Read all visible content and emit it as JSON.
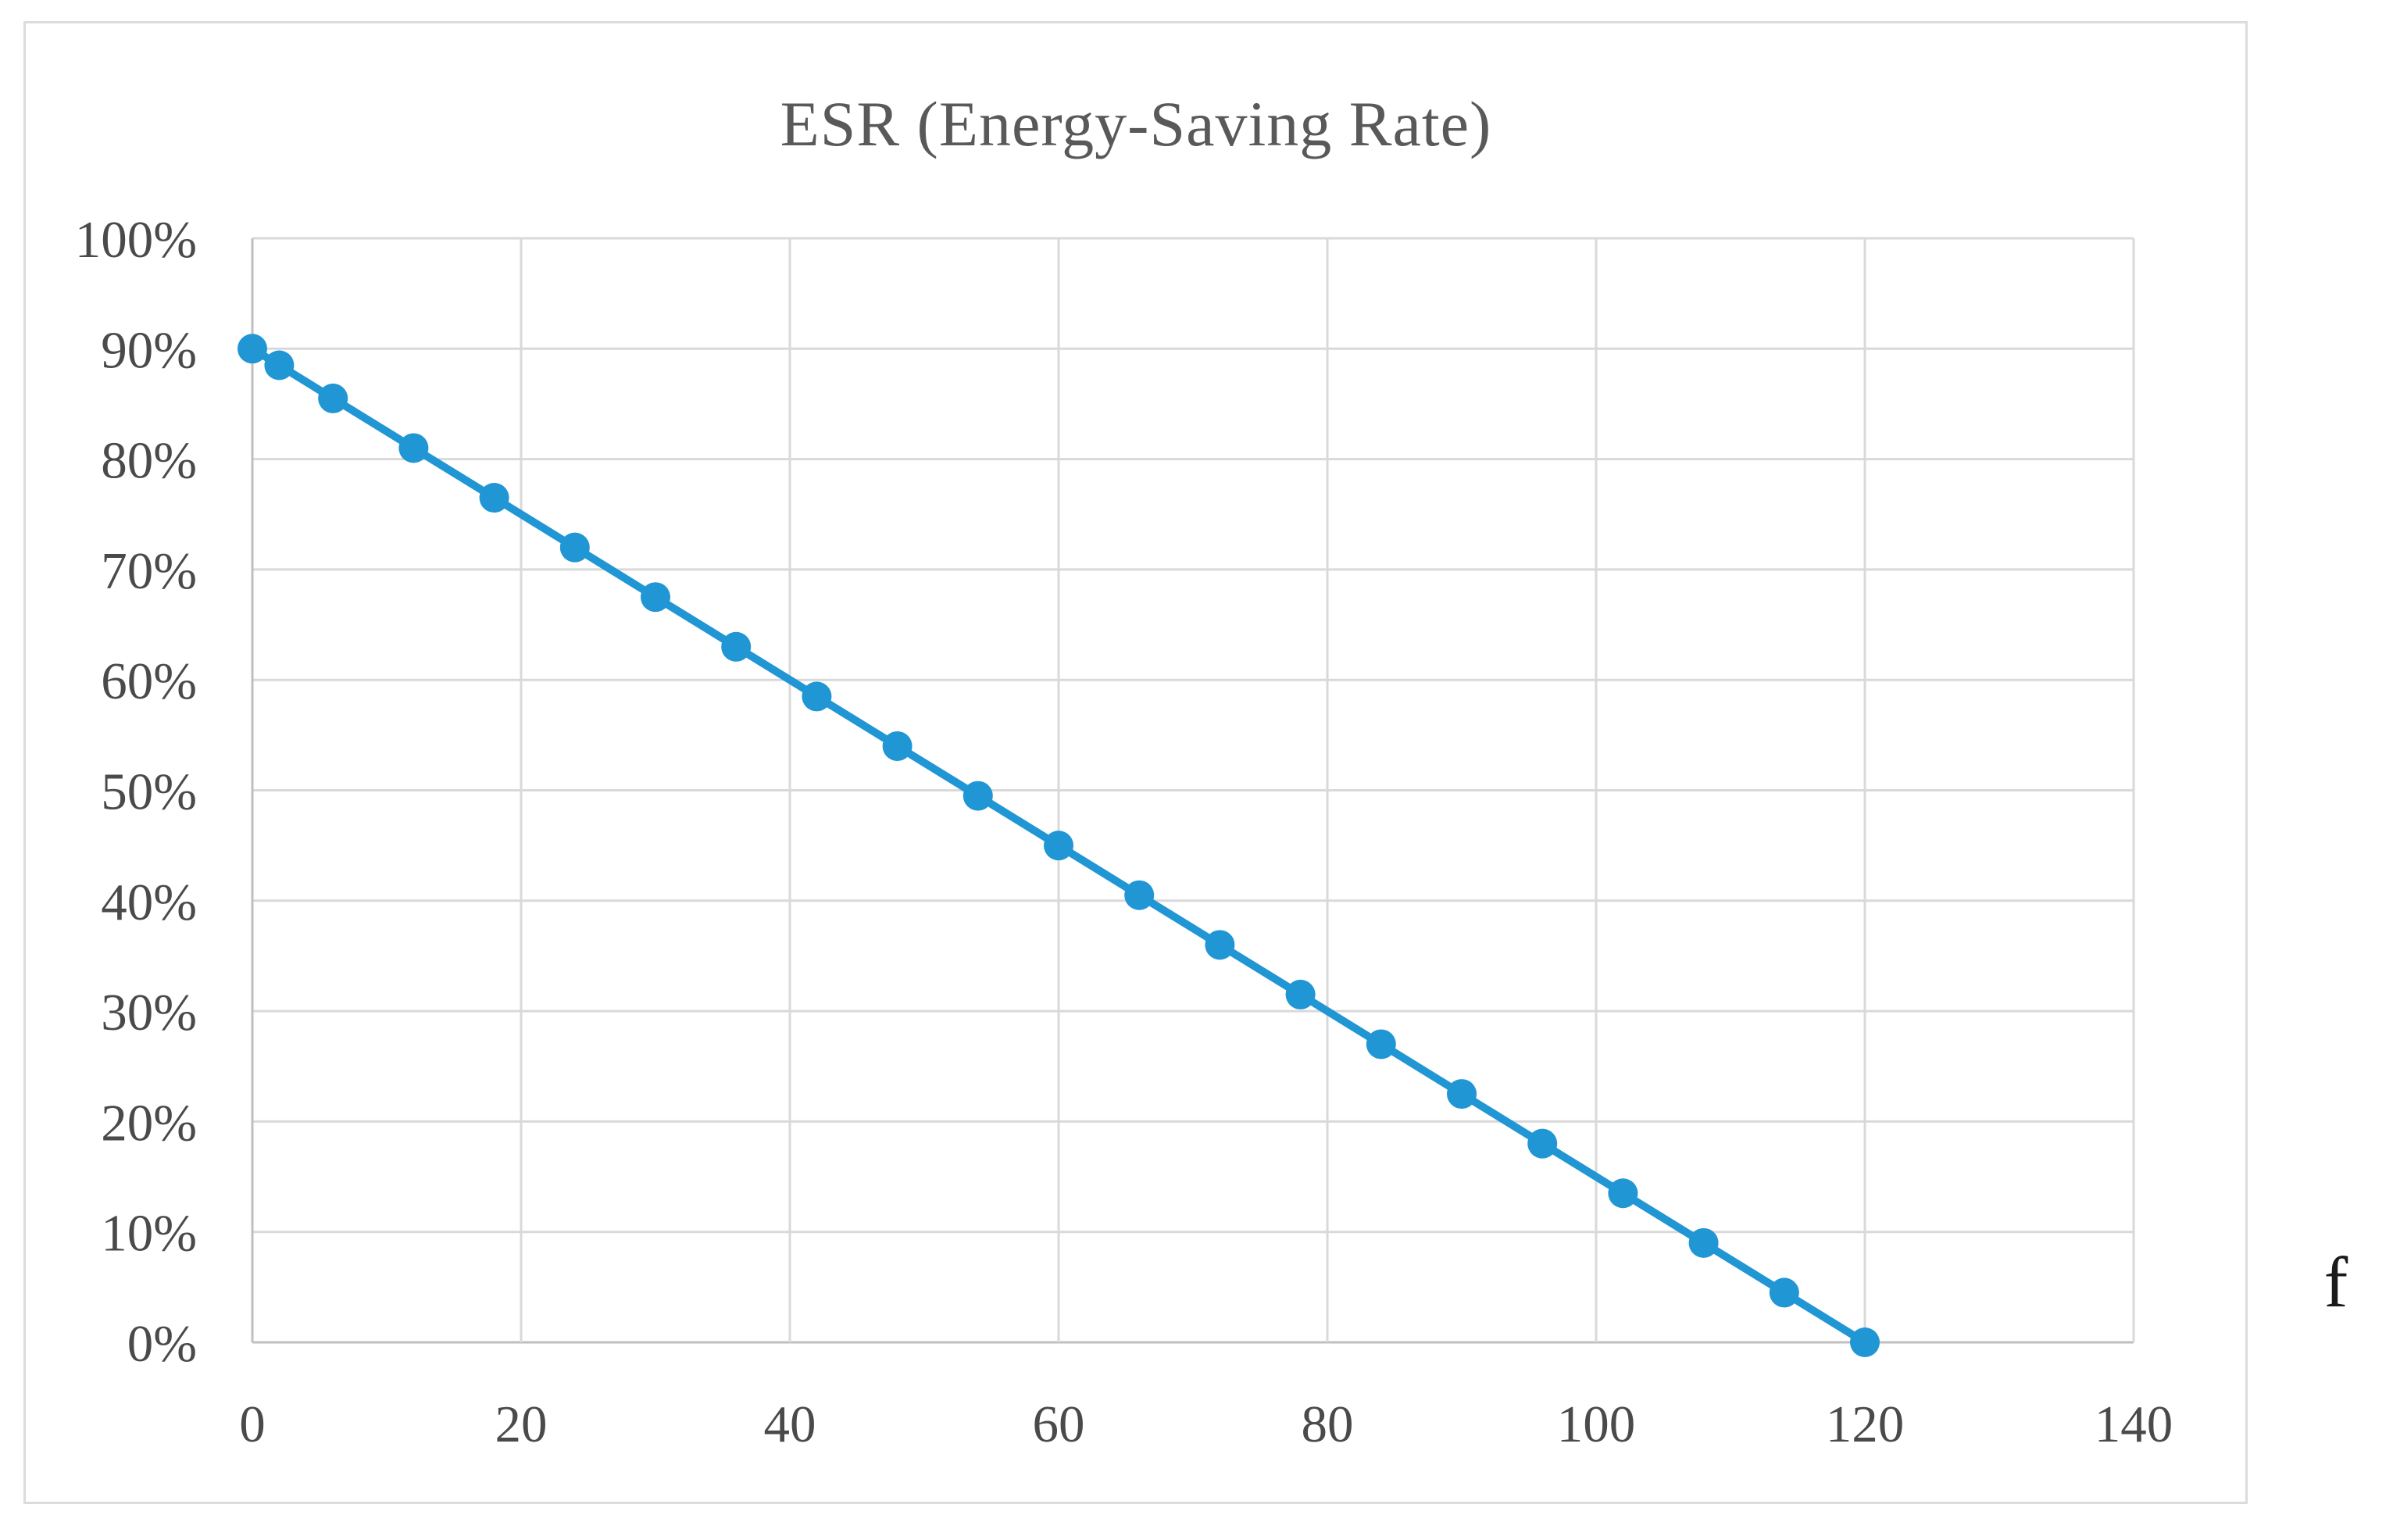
{
  "chart_data": {
    "type": "line",
    "title": "ESR (Energy-Saving Rate)",
    "x_variable": "f",
    "x": [
      0,
      2,
      6,
      12,
      18,
      24,
      30,
      36,
      42,
      48,
      54,
      60,
      66,
      72,
      78,
      84,
      90,
      96,
      102,
      108,
      114,
      120
    ],
    "y_percent": [
      90,
      88.5,
      85.5,
      81,
      76.5,
      72,
      67.5,
      63,
      58.5,
      54,
      49.5,
      45,
      40.5,
      36,
      31.5,
      27,
      22.5,
      18,
      13.5,
      9,
      4.5,
      0
    ],
    "xlim": [
      0,
      140
    ],
    "ylim": [
      0,
      100
    ],
    "x_ticks": [
      0,
      20,
      40,
      60,
      80,
      100,
      120,
      140
    ],
    "x_tick_labels": [
      "0",
      "20",
      "40",
      "60",
      "80",
      "100",
      "120",
      "140"
    ],
    "y_ticks": [
      0,
      10,
      20,
      30,
      40,
      50,
      60,
      70,
      80,
      90,
      100
    ],
    "y_tick_labels": [
      "0%",
      "10%",
      "20%",
      "30%",
      "40%",
      "50%",
      "60%",
      "70%",
      "80%",
      "90%",
      "100%"
    ],
    "grid": true,
    "legend": "none",
    "colors": {
      "line": "#2196D4",
      "marker": "#2196D4",
      "gridline": "#D9D9D9",
      "axis_line": "#BFBFBF",
      "tick_text": "#4A4A4A",
      "title_text": "#595959",
      "chart_border": "#DCDCDC"
    }
  }
}
